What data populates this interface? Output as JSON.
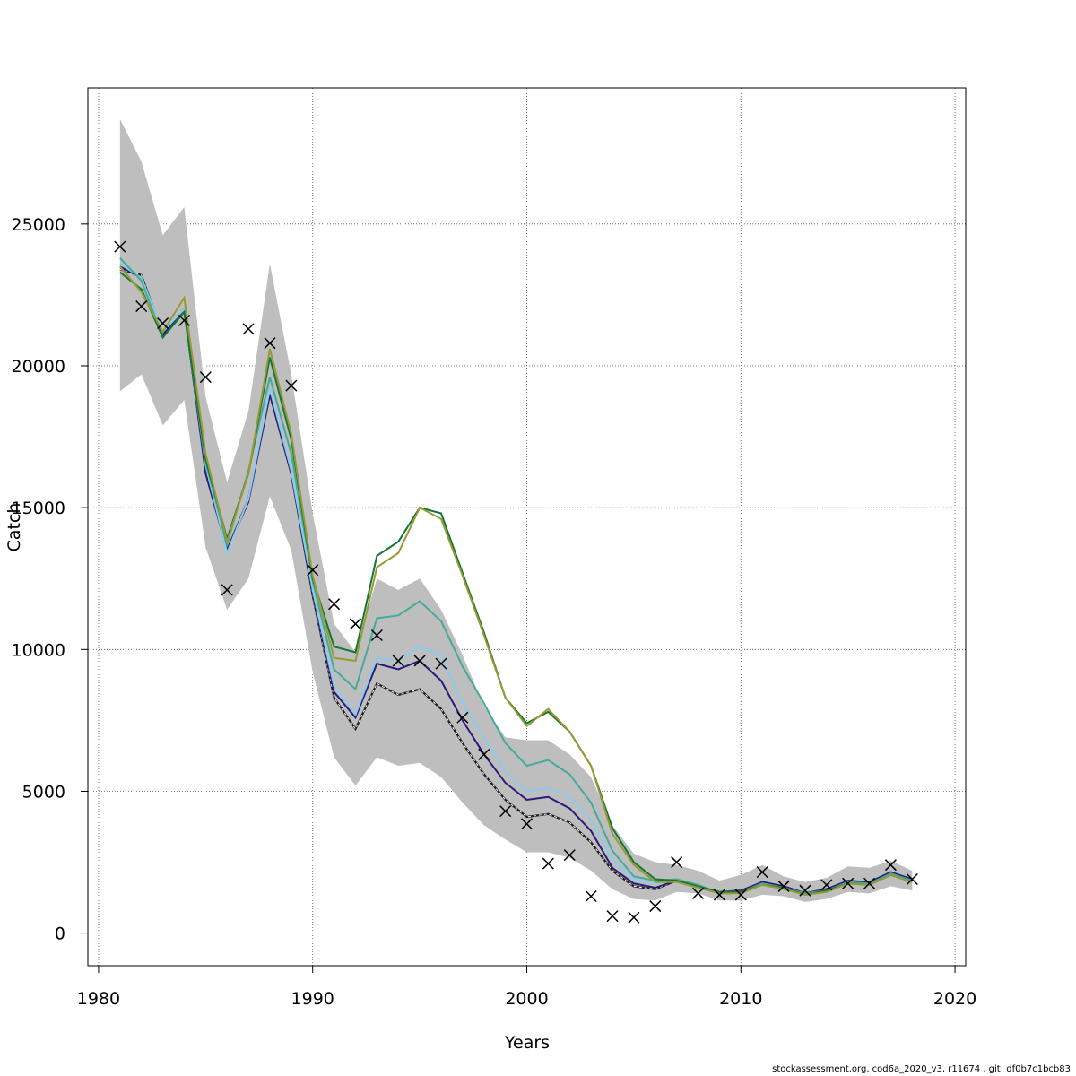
{
  "chart_data": {
    "type": "line",
    "xlabel": "Years",
    "ylabel": "Catch",
    "xlim": [
      1979.5,
      2020.5
    ],
    "ylim": [
      -1150,
      29800
    ],
    "x_ticks": [
      1980,
      1990,
      2000,
      2010,
      2020
    ],
    "y_ticks": [
      0,
      5000,
      10000,
      15000,
      20000,
      25000
    ],
    "grid": true,
    "years": [
      1981,
      1982,
      1983,
      1984,
      1985,
      1986,
      1987,
      1988,
      1989,
      1990,
      1991,
      1992,
      1993,
      1994,
      1995,
      1996,
      1997,
      1998,
      1999,
      2000,
      2001,
      2002,
      2003,
      2004,
      2005,
      2006,
      2007,
      2008,
      2009,
      2010,
      2011,
      2012,
      2013,
      2014,
      2015,
      2016,
      2017,
      2018
    ],
    "confidence_band": {
      "color": "#bebebe",
      "lower": [
        19100,
        19700,
        17900,
        18800,
        13600,
        11400,
        12500,
        15400,
        13500,
        9200,
        6200,
        5200,
        6200,
        5900,
        6000,
        5500,
        4600,
        3800,
        3300,
        2850,
        2850,
        2650,
        2200,
        1550,
        1200,
        1150,
        1450,
        1400,
        1150,
        1150,
        1350,
        1300,
        1100,
        1200,
        1450,
        1400,
        1650,
        1500
      ],
      "upper": [
        28700,
        27200,
        24600,
        25600,
        18900,
        15900,
        18400,
        23600,
        19700,
        14800,
        10900,
        9900,
        12500,
        12100,
        12500,
        11400,
        9800,
        8000,
        6900,
        6800,
        6800,
        6300,
        5500,
        3800,
        2800,
        2500,
        2400,
        2200,
        1850,
        2050,
        2400,
        2000,
        1800,
        1950,
        2350,
        2300,
        2550,
        2200
      ]
    },
    "series": [
      {
        "color": "#1a1a1a",
        "dashed": true,
        "values": [
          23400,
          23200,
          21100,
          22000,
          16300,
          13500,
          15300,
          19000,
          16200,
          11900,
          8300,
          7200,
          8800,
          8400,
          8600,
          7900,
          6700,
          5600,
          4700,
          4100,
          4200,
          3900,
          3200,
          2200,
          1650,
          1550,
          1850,
          1650,
          1450,
          1450,
          1800,
          1650,
          1400,
          1550,
          1800,
          1750,
          2100,
          1850
        ]
      },
      {
        "color": "#2b1a7a",
        "dashed": false,
        "values": [
          23500,
          23100,
          21100,
          22000,
          16200,
          13500,
          15200,
          19000,
          16200,
          12000,
          8500,
          7600,
          9500,
          9300,
          9600,
          8900,
          7500,
          6300,
          5300,
          4700,
          4800,
          4400,
          3600,
          2300,
          1750,
          1600,
          1850,
          1650,
          1450,
          1500,
          1800,
          1650,
          1400,
          1550,
          1850,
          1800,
          2150,
          1900
        ]
      },
      {
        "color": "#88ccee",
        "dashed": false,
        "values": [
          23600,
          23100,
          21200,
          22000,
          16500,
          13400,
          15300,
          19200,
          16300,
          12100,
          8700,
          7700,
          9700,
          9600,
          10100,
          9800,
          8100,
          6900,
          5700,
          5000,
          5100,
          4800,
          4000,
          2600,
          1900,
          1750,
          1850,
          1700,
          1450,
          1450,
          1750,
          1600,
          1350,
          1500,
          1750,
          1700,
          2100,
          1850
        ]
      },
      {
        "color": "#44aa99",
        "dashed": false,
        "values": [
          23800,
          23000,
          21000,
          21900,
          16600,
          13700,
          16300,
          19600,
          16900,
          12400,
          9300,
          8600,
          11100,
          11200,
          11700,
          11000,
          9400,
          8100,
          6700,
          5900,
          6100,
          5600,
          4600,
          2900,
          2000,
          1850,
          1900,
          1700,
          1400,
          1450,
          1750,
          1600,
          1400,
          1500,
          1800,
          1750,
          2100,
          1850
        ]
      },
      {
        "color": "#117733",
        "dashed": false,
        "values": [
          23300,
          22700,
          21000,
          21900,
          16700,
          13900,
          16200,
          20300,
          17400,
          12500,
          10100,
          9900,
          13300,
          13800,
          15000,
          14800,
          12700,
          10600,
          8300,
          7400,
          7800,
          7100,
          5900,
          3700,
          2500,
          1900,
          1850,
          1650,
          1450,
          1450,
          1700,
          1600,
          1350,
          1500,
          1750,
          1700,
          2050,
          1800
        ]
      },
      {
        "color": "#999933",
        "dashed": false,
        "values": [
          23500,
          22600,
          21200,
          22400,
          16900,
          13800,
          16200,
          20600,
          17600,
          12600,
          9700,
          9600,
          12900,
          13400,
          15000,
          14600,
          12600,
          10500,
          8300,
          7300,
          7900,
          7100,
          5900,
          3500,
          2400,
          1800,
          1800,
          1600,
          1400,
          1400,
          1700,
          1550,
          1350,
          1450,
          1750,
          1700,
          2050,
          1800
        ]
      }
    ],
    "observed": {
      "marker": "x",
      "color": "#000000",
      "values": [
        24200,
        22100,
        21500,
        21600,
        19600,
        12100,
        21300,
        20800,
        19300,
        12800,
        11600,
        10900,
        10500,
        9600,
        9600,
        9500,
        7600,
        6300,
        4300,
        3850,
        2450,
        2750,
        1300,
        600,
        550,
        950,
        2500,
        1400,
        1350,
        1350,
        2150,
        1650,
        1500,
        1700,
        1750,
        1750,
        2400,
        1900
      ]
    }
  },
  "footer": {
    "text": "stockassessment.org, cod6a_2020_v3, r11674 , git: df0b7c1bcb83"
  }
}
